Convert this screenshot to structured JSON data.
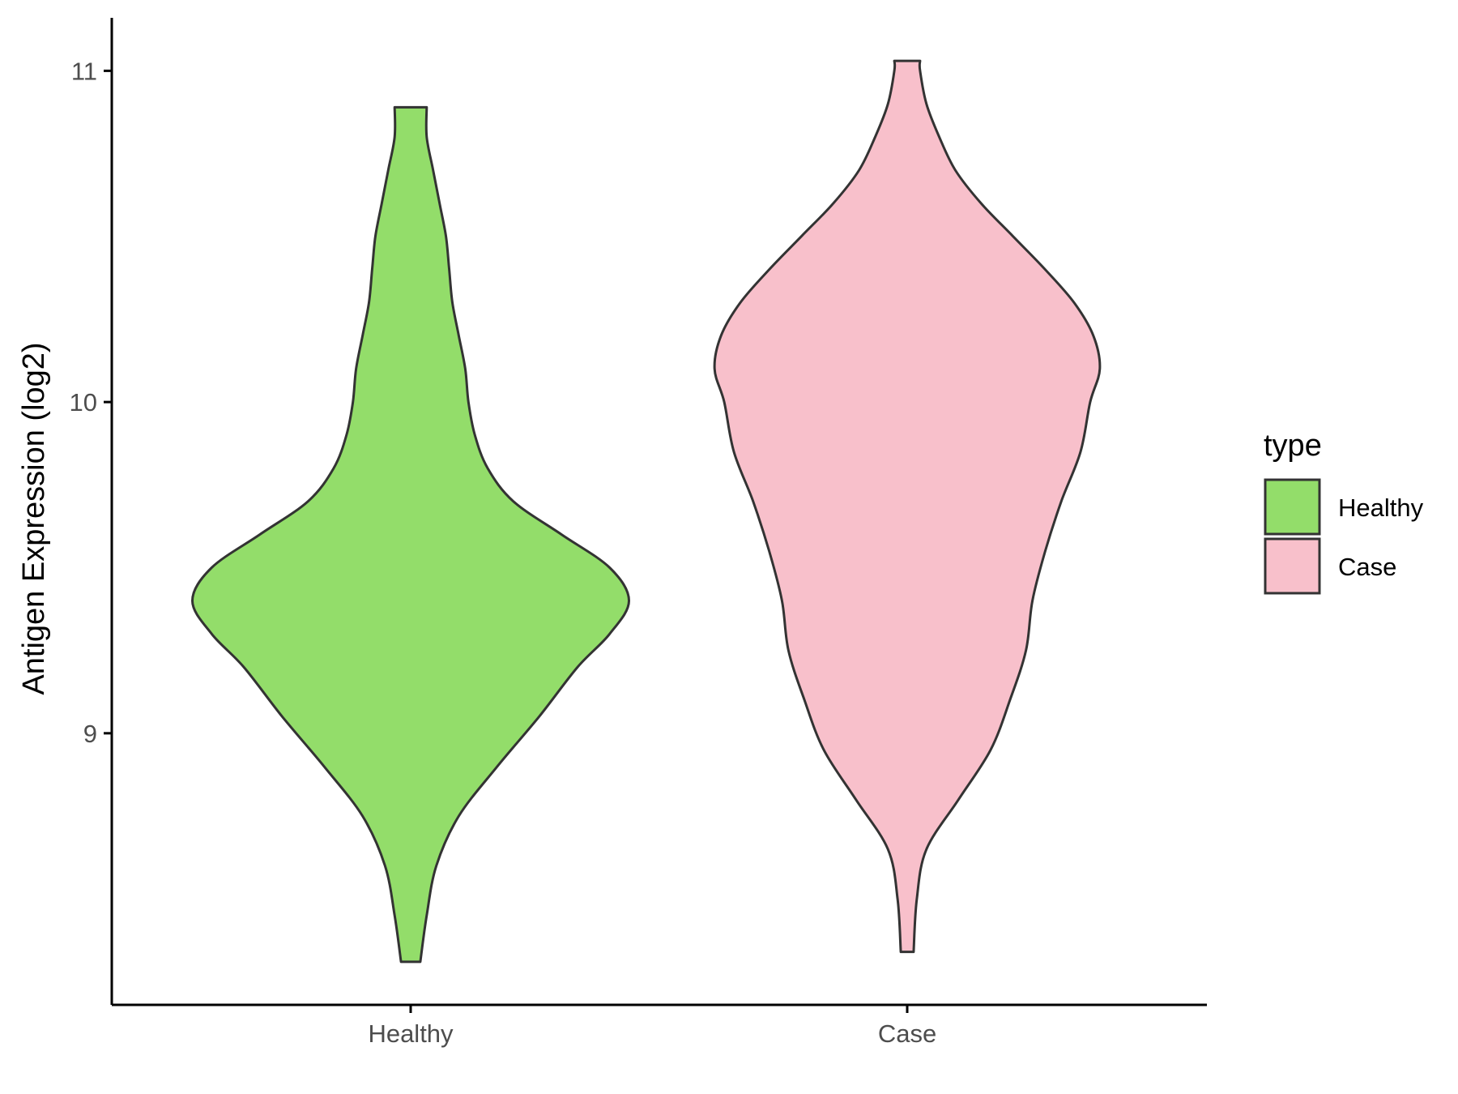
{
  "chart_data": {
    "type": "violin",
    "title": "",
    "xlabel": "",
    "ylabel": "Antigen Expression (log2)",
    "ylim": [
      8.18,
      11.16
    ],
    "yticks": [
      9,
      10,
      11
    ],
    "categories": [
      "Healthy",
      "Case"
    ],
    "legend": {
      "title": "type",
      "position": "right",
      "entries": [
        "Healthy",
        "Case"
      ]
    },
    "series": [
      {
        "name": "Healthy",
        "color": "#93DD6A",
        "min": 8.31,
        "max": 10.89,
        "density": [
          [
            8.31,
            0.03
          ],
          [
            8.45,
            0.05
          ],
          [
            8.6,
            0.08
          ],
          [
            8.75,
            0.15
          ],
          [
            8.9,
            0.27
          ],
          [
            9.05,
            0.4
          ],
          [
            9.2,
            0.52
          ],
          [
            9.3,
            0.62
          ],
          [
            9.4,
            0.68
          ],
          [
            9.5,
            0.62
          ],
          [
            9.6,
            0.47
          ],
          [
            9.7,
            0.32
          ],
          [
            9.8,
            0.24
          ],
          [
            9.9,
            0.2
          ],
          [
            10.0,
            0.18
          ],
          [
            10.1,
            0.17
          ],
          [
            10.2,
            0.15
          ],
          [
            10.3,
            0.13
          ],
          [
            10.4,
            0.12
          ],
          [
            10.5,
            0.11
          ],
          [
            10.6,
            0.09
          ],
          [
            10.7,
            0.07
          ],
          [
            10.8,
            0.05
          ],
          [
            10.89,
            0.05
          ]
        ]
      },
      {
        "name": "Case",
        "color": "#F8C0CB",
        "min": 8.34,
        "max": 11.03,
        "density": [
          [
            8.34,
            0.02
          ],
          [
            8.5,
            0.03
          ],
          [
            8.65,
            0.06
          ],
          [
            8.8,
            0.16
          ],
          [
            8.95,
            0.26
          ],
          [
            9.1,
            0.32
          ],
          [
            9.25,
            0.37
          ],
          [
            9.4,
            0.39
          ],
          [
            9.55,
            0.43
          ],
          [
            9.7,
            0.48
          ],
          [
            9.85,
            0.54
          ],
          [
            10.0,
            0.57
          ],
          [
            10.1,
            0.6
          ],
          [
            10.2,
            0.58
          ],
          [
            10.3,
            0.52
          ],
          [
            10.4,
            0.43
          ],
          [
            10.5,
            0.33
          ],
          [
            10.6,
            0.23
          ],
          [
            10.7,
            0.15
          ],
          [
            10.8,
            0.1
          ],
          [
            10.9,
            0.06
          ],
          [
            11.0,
            0.04
          ],
          [
            11.03,
            0.04
          ]
        ]
      }
    ]
  }
}
